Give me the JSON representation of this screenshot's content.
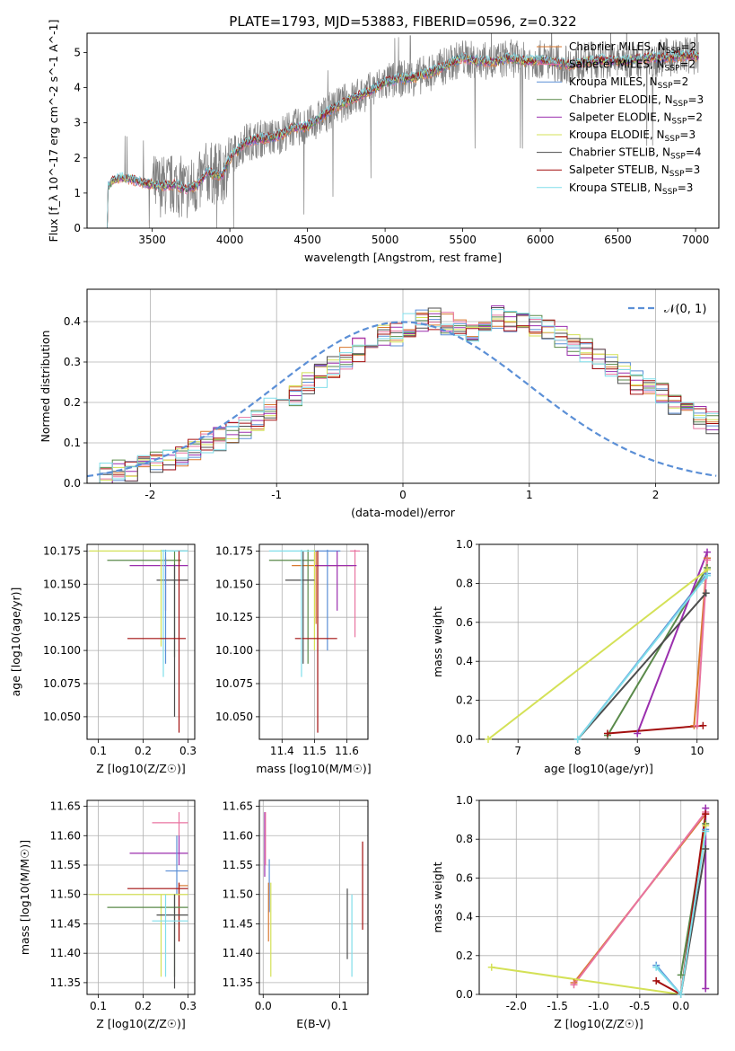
{
  "figure": {
    "title": "PLATE=1793, MJD=53883, FIBERID=0596, z=0.322"
  },
  "colors": {
    "data": "#808080",
    "model_order": [
      "#ff7f0e",
      "#1f77b4",
      "#2ca02c",
      "#d62728",
      "#9467bd",
      "#8c564b",
      "#e377c2",
      "#7f7f7f",
      "#bcbd22",
      "#17becf"
    ]
  },
  "models": [
    {
      "name": "Chabrier MILES",
      "nssp": "2",
      "color": "#d8782f"
    },
    {
      "name": "Salpeter MILES",
      "nssp": "2",
      "color": "#e873a0"
    },
    {
      "name": "Kroupa MILES",
      "nssp": "2",
      "color": "#5b8fd6"
    },
    {
      "name": "Chabrier ELODIE",
      "nssp": "3",
      "color": "#5a8a4a"
    },
    {
      "name": "Salpeter ELODIE",
      "nssp": "2",
      "color": "#9b2fae"
    },
    {
      "name": "Kroupa ELODIE",
      "nssp": "3",
      "color": "#d4e157"
    },
    {
      "name": "Chabrier STELIB",
      "nssp": "4",
      "color": "#4d4d4d"
    },
    {
      "name": "Salpeter STELIB",
      "nssp": "3",
      "color": "#a30f0f"
    },
    {
      "name": "Kroupa STELIB",
      "nssp": "3",
      "color": "#80deea"
    }
  ],
  "chart_data": [
    {
      "id": "spectrum",
      "type": "line",
      "xlabel": "wavelength [Angstrom, rest frame]",
      "ylabel": "Flux [f_λ 10^-17 erg cm^-2 s^-1 A^-1]",
      "xlim": [
        3080,
        7150
      ],
      "ylim": [
        0,
        5.55
      ],
      "xticks": [
        3500,
        4000,
        4500,
        5000,
        5500,
        6000,
        6500,
        7000
      ],
      "yticks": [
        0,
        1,
        2,
        3,
        4,
        5
      ],
      "grid": false,
      "legend_placement": "top-right",
      "continuum_points": [
        [
          3210,
          0
        ],
        [
          3215,
          1.2
        ],
        [
          3250,
          1.35
        ],
        [
          3300,
          1.45
        ],
        [
          3400,
          1.35
        ],
        [
          3480,
          1.25
        ],
        [
          3550,
          1.2
        ],
        [
          3650,
          1.25
        ],
        [
          3720,
          1.1
        ],
        [
          3800,
          1.25
        ],
        [
          3850,
          1.6
        ],
        [
          3950,
          1.5
        ],
        [
          4000,
          2.0
        ],
        [
          4100,
          2.45
        ],
        [
          4200,
          2.55
        ],
        [
          4300,
          2.6
        ],
        [
          4400,
          2.85
        ],
        [
          4500,
          2.9
        ],
        [
          4600,
          3.2
        ],
        [
          4700,
          3.5
        ],
        [
          4800,
          3.7
        ],
        [
          4900,
          3.9
        ],
        [
          5000,
          4.15
        ],
        [
          5100,
          4.25
        ],
        [
          5200,
          4.3
        ],
        [
          5300,
          4.45
        ],
        [
          5400,
          4.65
        ],
        [
          5500,
          4.85
        ],
        [
          5600,
          4.75
        ],
        [
          5700,
          4.75
        ],
        [
          5800,
          4.85
        ],
        [
          5900,
          4.75
        ],
        [
          6000,
          4.8
        ],
        [
          6100,
          4.7
        ],
        [
          6200,
          4.65
        ],
        [
          6300,
          4.75
        ],
        [
          6400,
          4.8
        ],
        [
          6500,
          4.75
        ],
        [
          6600,
          4.8
        ],
        [
          6700,
          4.85
        ],
        [
          6800,
          4.85
        ],
        [
          6900,
          4.9
        ],
        [
          7000,
          4.9
        ],
        [
          7020,
          4.9
        ]
      ]
    },
    {
      "id": "residuals",
      "type": "step",
      "xlabel": "(data-model)/error",
      "ylabel": "Normed distribution",
      "xlim": [
        -2.5,
        2.5
      ],
      "ylim": [
        0,
        0.48
      ],
      "xticks": [
        -2,
        -1,
        0,
        1,
        2
      ],
      "yticks": [
        0.0,
        0.1,
        0.2,
        0.3,
        0.4
      ],
      "grid": true,
      "reference_curve": {
        "name": "𝒩(0, 1)",
        "mean": 0,
        "sigma": 1
      },
      "bin_width": 0.1,
      "reference_counts": [
        0.02,
        0.022,
        0.03,
        0.035,
        0.04,
        0.05,
        0.06,
        0.07,
        0.085,
        0.1,
        0.11,
        0.125,
        0.14,
        0.16,
        0.185,
        0.21,
        0.22,
        0.25,
        0.265,
        0.29,
        0.31,
        0.33,
        0.35,
        0.365,
        0.37,
        0.39,
        0.4,
        0.405,
        0.395,
        0.39,
        0.38,
        0.39,
        0.41,
        0.4,
        0.395,
        0.39,
        0.38,
        0.365,
        0.34,
        0.33,
        0.31,
        0.29,
        0.27,
        0.25,
        0.24,
        0.22,
        0.2,
        0.185,
        0.16,
        0.15,
        0.13,
        0.12,
        0.1,
        0.09,
        0.08,
        0.07,
        0.06,
        0.05,
        0.045,
        0.04
      ]
    },
    {
      "id": "age-vs-Z",
      "type": "errorbar",
      "xlabel": "Z [log10(Z/Z☉)]",
      "ylabel": "age [log10(age/yr)]",
      "xlim": [
        0.075,
        0.315
      ],
      "ylim": [
        10.033,
        10.18
      ],
      "xticks": [
        0.1,
        0.2,
        0.3
      ],
      "yticks": [
        10.05,
        10.075,
        10.1,
        10.125,
        10.15,
        10.175
      ],
      "grid": true,
      "points": [
        {
          "model": 0,
          "x": 0.275,
          "xerr": [
            0.275,
            0.292
          ],
          "y": 10.175,
          "yerr": [
            10.175,
            10.175
          ]
        },
        {
          "model": 3,
          "x": 0.27,
          "xerr": [
            0.12,
            0.285
          ],
          "y": 10.168,
          "yerr": [
            10.095,
            10.175
          ]
        },
        {
          "model": 4,
          "x": 0.25,
          "xerr": [
            0.17,
            0.3
          ],
          "y": 10.164,
          "yerr": [
            10.13,
            10.17
          ]
        },
        {
          "model": 6,
          "x": 0.27,
          "xerr": [
            0.23,
            0.3
          ],
          "y": 10.153,
          "yerr": [
            10.05,
            10.165
          ]
        },
        {
          "model": 5,
          "x": 0.24,
          "xerr": [
            0.08,
            0.3
          ],
          "y": 10.175,
          "yerr": [
            10.103,
            10.176
          ]
        },
        {
          "model": 2,
          "x": 0.25,
          "xerr": [
            0.24,
            0.3
          ],
          "y": 10.175,
          "yerr": [
            10.09,
            10.176
          ]
        },
        {
          "model": 8,
          "x": 0.245,
          "xerr": [
            0.24,
            0.3
          ],
          "y": 10.175,
          "yerr": [
            10.08,
            10.176
          ]
        },
        {
          "model": 7,
          "x": 0.28,
          "xerr": [
            0.165,
            0.295
          ],
          "y": 10.109,
          "yerr": [
            10.038,
            10.175
          ]
        }
      ]
    },
    {
      "id": "age-vs-mass",
      "type": "errorbar",
      "xlabel": "mass [log10(M/M☉)]",
      "ylabel": "",
      "xlim": [
        11.33,
        11.665
      ],
      "ylim": [
        10.033,
        10.18
      ],
      "xticks": [
        11.4,
        11.5,
        11.6
      ],
      "yticks": [
        10.05,
        10.075,
        10.1,
        10.125,
        10.15,
        10.175
      ],
      "grid": true,
      "points": [
        {
          "model": 0,
          "x": 11.505,
          "xerr": [
            11.43,
            11.62
          ],
          "y": 10.164,
          "yerr": [
            10.12,
            10.175
          ]
        },
        {
          "model": 1,
          "x": 11.625,
          "xerr": [
            11.61,
            11.64
          ],
          "y": 10.175,
          "yerr": [
            10.11,
            10.176
          ]
        },
        {
          "model": 2,
          "x": 11.54,
          "xerr": [
            11.5,
            11.58
          ],
          "y": 10.175,
          "yerr": [
            10.1,
            10.176
          ]
        },
        {
          "model": 3,
          "x": 11.48,
          "xerr": [
            11.36,
            11.5
          ],
          "y": 10.168,
          "yerr": [
            10.09,
            10.176
          ]
        },
        {
          "model": 4,
          "x": 11.57,
          "xerr": [
            11.5,
            11.63
          ],
          "y": 10.164,
          "yerr": [
            10.13,
            10.175
          ]
        },
        {
          "model": 5,
          "x": 11.5,
          "xerr": [
            11.49,
            11.5
          ],
          "y": 10.175,
          "yerr": [
            10.1,
            10.176
          ]
        },
        {
          "model": 6,
          "x": 11.465,
          "xerr": [
            11.41,
            11.5
          ],
          "y": 10.153,
          "yerr": [
            10.09,
            10.175
          ]
        },
        {
          "model": 7,
          "x": 11.51,
          "xerr": [
            11.44,
            11.57
          ],
          "y": 10.109,
          "yerr": [
            10.038,
            10.175
          ]
        },
        {
          "model": 8,
          "x": 11.46,
          "xerr": [
            11.36,
            11.5
          ],
          "y": 10.175,
          "yerr": [
            10.08,
            10.176
          ]
        }
      ]
    },
    {
      "id": "massweight-vs-age",
      "type": "line",
      "xlabel": "age [log10(age/yr)]",
      "ylabel": "mass weight",
      "xlim": [
        6.35,
        10.35
      ],
      "ylim": [
        0.0,
        1.0
      ],
      "xticks": [
        7,
        8,
        9,
        10
      ],
      "yticks": [
        0.0,
        0.2,
        0.4,
        0.6,
        0.8,
        1.0
      ],
      "grid": true,
      "lines": [
        {
          "model": 0,
          "points": [
            [
              9.95,
              0.07
            ],
            [
              10.17,
              0.93
            ]
          ]
        },
        {
          "model": 1,
          "points": [
            [
              10.0,
              0.07
            ],
            [
              10.17,
              0.92
            ]
          ]
        },
        {
          "model": 2,
          "points": [
            [
              8.0,
              0.0
            ],
            [
              10.17,
              0.85
            ]
          ]
        },
        {
          "model": 3,
          "points": [
            [
              8.5,
              0.02
            ],
            [
              10.17,
              0.88
            ]
          ]
        },
        {
          "model": 4,
          "points": [
            [
              9.0,
              0.03
            ],
            [
              10.17,
              0.96
            ]
          ]
        },
        {
          "model": 5,
          "points": [
            [
              6.5,
              0.0
            ],
            [
              10.17,
              0.87
            ]
          ]
        },
        {
          "model": 6,
          "points": [
            [
              8.0,
              0.0
            ],
            [
              10.15,
              0.75
            ]
          ]
        },
        {
          "model": 7,
          "points": [
            [
              8.5,
              0.03
            ],
            [
              10.1,
              0.07
            ]
          ]
        },
        {
          "model": 8,
          "points": [
            [
              8.0,
              0.0
            ],
            [
              10.17,
              0.84
            ]
          ]
        }
      ]
    },
    {
      "id": "mass-vs-Z",
      "type": "errorbar",
      "xlabel": "Z [log10(Z/Z☉)]",
      "ylabel": "mass [log10(M/M☉)]",
      "xlim": [
        0.075,
        0.315
      ],
      "ylim": [
        11.33,
        11.66
      ],
      "xticks": [
        0.1,
        0.2,
        0.3
      ],
      "yticks": [
        11.35,
        11.4,
        11.45,
        11.5,
        11.55,
        11.6,
        11.65
      ],
      "grid": true,
      "points": [
        {
          "model": 1,
          "x": 0.28,
          "xerr": [
            0.22,
            0.3
          ],
          "y": 11.622,
          "yerr": [
            11.6,
            11.64
          ]
        },
        {
          "model": 4,
          "x": 0.28,
          "xerr": [
            0.17,
            0.3
          ],
          "y": 11.57,
          "yerr": [
            11.55,
            11.6
          ]
        },
        {
          "model": 2,
          "x": 0.275,
          "xerr": [
            0.25,
            0.3
          ],
          "y": 11.54,
          "yerr": [
            11.5,
            11.6
          ]
        },
        {
          "model": 0,
          "x": 0.28,
          "xerr": [
            0.28,
            0.3
          ],
          "y": 11.515,
          "yerr": [
            11.42,
            11.52
          ]
        },
        {
          "model": 7,
          "x": 0.28,
          "xerr": [
            0.165,
            0.3
          ],
          "y": 11.51,
          "yerr": [
            11.42,
            11.52
          ]
        },
        {
          "model": 5,
          "x": 0.24,
          "xerr": [
            0.08,
            0.3
          ],
          "y": 11.5,
          "yerr": [
            11.36,
            11.5
          ]
        },
        {
          "model": 3,
          "x": 0.27,
          "xerr": [
            0.12,
            0.3
          ],
          "y": 11.478,
          "yerr": [
            11.36,
            11.5
          ]
        },
        {
          "model": 6,
          "x": 0.27,
          "xerr": [
            0.23,
            0.3
          ],
          "y": 11.465,
          "yerr": [
            11.34,
            11.5
          ]
        },
        {
          "model": 8,
          "x": 0.25,
          "xerr": [
            0.22,
            0.3
          ],
          "y": 11.455,
          "yerr": [
            11.36,
            11.5
          ]
        }
      ]
    },
    {
      "id": "mass-vs-EBV",
      "type": "errorbar",
      "xlabel": "E(B-V)",
      "ylabel": "",
      "xlim": [
        -0.005,
        0.137
      ],
      "ylim": [
        11.33,
        11.66
      ],
      "xticks": [
        0.0,
        0.1
      ],
      "yticks": [
        11.35,
        11.4,
        11.45,
        11.5,
        11.55,
        11.6,
        11.65
      ],
      "grid": true,
      "points": [
        {
          "model": 4,
          "x": 0.002,
          "y": 11.59,
          "yerr": [
            11.53,
            11.64
          ]
        },
        {
          "model": 1,
          "x": 0.003,
          "y": 11.6,
          "yerr": [
            11.55,
            11.64
          ]
        },
        {
          "model": 2,
          "x": 0.008,
          "y": 11.53,
          "yerr": [
            11.47,
            11.56
          ]
        },
        {
          "model": 5,
          "x": 0.01,
          "y": 11.47,
          "yerr": [
            11.36,
            11.52
          ]
        },
        {
          "model": 0,
          "x": 0.007,
          "y": 11.47,
          "yerr": [
            11.42,
            11.52
          ]
        },
        {
          "model": 6,
          "x": 0.11,
          "y": 11.45,
          "yerr": [
            11.39,
            11.51
          ]
        },
        {
          "model": 8,
          "x": 0.116,
          "y": 11.44,
          "yerr": [
            11.36,
            11.5
          ]
        },
        {
          "model": 7,
          "x": 0.13,
          "y": 11.52,
          "yerr": [
            11.44,
            11.59
          ]
        }
      ]
    },
    {
      "id": "massweight-vs-Z",
      "type": "line",
      "xlabel": "Z [log10(Z/Z☉)]",
      "ylabel": "mass weight",
      "xlim": [
        -2.45,
        0.45
      ],
      "ylim": [
        0.0,
        1.0
      ],
      "xticks": [
        -2.0,
        -1.5,
        -1.0,
        -0.5,
        0.0
      ],
      "yticks": [
        0.0,
        0.2,
        0.4,
        0.6,
        0.8,
        1.0
      ],
      "grid": true,
      "lines": [
        {
          "model": 0,
          "points": [
            [
              -1.3,
              0.06
            ],
            [
              0.3,
              0.93
            ]
          ]
        },
        {
          "model": 1,
          "points": [
            [
              -1.3,
              0.05
            ],
            [
              0.3,
              0.94
            ]
          ]
        },
        {
          "model": 2,
          "points": [
            [
              -0.3,
              0.15
            ],
            [
              0.0,
              0.0
            ],
            [
              0.3,
              0.85
            ]
          ]
        },
        {
          "model": 3,
          "points": [
            [
              0.0,
              0.1
            ],
            [
              0.3,
              0.88
            ]
          ]
        },
        {
          "model": 4,
          "points": [
            [
              0.3,
              0.03
            ],
            [
              0.3,
              0.96
            ]
          ]
        },
        {
          "model": 5,
          "points": [
            [
              -2.3,
              0.14
            ],
            [
              0.0,
              0.0
            ],
            [
              0.3,
              0.87
            ]
          ]
        },
        {
          "model": 6,
          "points": [
            [
              0.0,
              0.0
            ],
            [
              0.3,
              0.75
            ]
          ]
        },
        {
          "model": 7,
          "points": [
            [
              -0.3,
              0.07
            ],
            [
              0.0,
              0.0
            ],
            [
              0.3,
              0.93
            ]
          ]
        },
        {
          "model": 8,
          "points": [
            [
              -0.3,
              0.14
            ],
            [
              0.0,
              0.0
            ],
            [
              0.3,
              0.84
            ]
          ]
        }
      ]
    }
  ]
}
